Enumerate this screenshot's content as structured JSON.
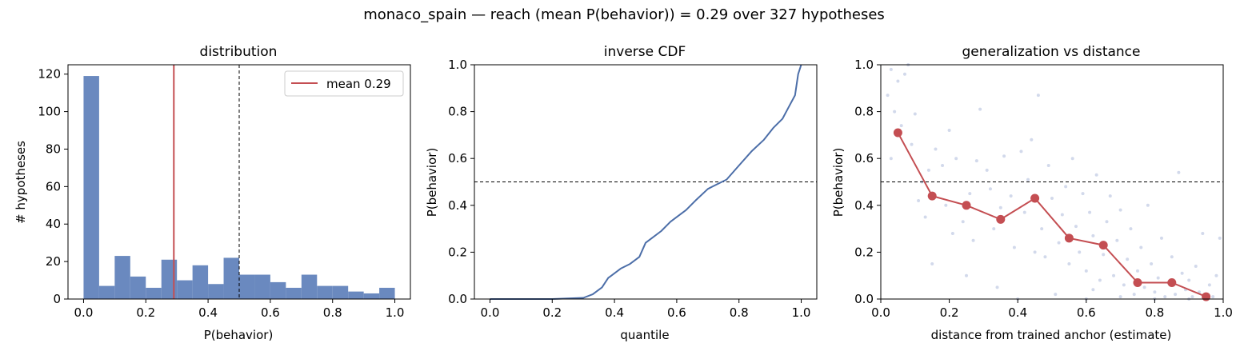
{
  "figure_title": "monaco_spain  —  reach (mean P(behavior)) = 0.29  over 327 hypotheses",
  "colors": {
    "blue": "#6a89bf",
    "line_blue": "#4c6ea8",
    "red": "#c44e52",
    "scatter": "#c7cfe6"
  },
  "chart_data": [
    {
      "type": "bar",
      "title": "distribution",
      "xlabel": "P(behavior)",
      "ylabel": "# hypotheses",
      "xlim": [
        -0.05,
        1.05
      ],
      "ylim": [
        0,
        125
      ],
      "xticks": [
        0.0,
        0.2,
        0.4,
        0.6,
        0.8,
        1.0
      ],
      "xtick_labels": [
        "0.0",
        "0.2",
        "0.4",
        "0.6",
        "0.8",
        "1.0"
      ],
      "yticks": [
        0,
        20,
        40,
        60,
        80,
        100,
        120
      ],
      "ytick_labels": [
        "0",
        "20",
        "40",
        "60",
        "80",
        "100",
        "120"
      ],
      "bin_edges": [
        0.0,
        0.05,
        0.1,
        0.15,
        0.2,
        0.25,
        0.3,
        0.35,
        0.4,
        0.45,
        0.5,
        0.55,
        0.6,
        0.65,
        0.7,
        0.75,
        0.8,
        0.85,
        0.9,
        0.95,
        1.0
      ],
      "counts": [
        119,
        7,
        23,
        12,
        6,
        21,
        10,
        18,
        8,
        22,
        13,
        13,
        9,
        6,
        13,
        7,
        7,
        4,
        3,
        6
      ],
      "mean_line": {
        "x": 0.29,
        "label": "mean 0.29"
      },
      "threshold_x": 0.5,
      "legend": "top-right"
    },
    {
      "type": "line",
      "title": "inverse CDF",
      "xlabel": "quantile",
      "ylabel": "P(behavior)",
      "xlim": [
        -0.05,
        1.05
      ],
      "ylim": [
        0,
        1.0
      ],
      "xticks": [
        0.0,
        0.2,
        0.4,
        0.6,
        0.8,
        1.0
      ],
      "xtick_labels": [
        "0.0",
        "0.2",
        "0.4",
        "0.6",
        "0.8",
        "1.0"
      ],
      "yticks": [
        0.0,
        0.2,
        0.4,
        0.6,
        0.8,
        1.0
      ],
      "ytick_labels": [
        "0.0",
        "0.2",
        "0.4",
        "0.6",
        "0.8",
        "1.0"
      ],
      "threshold_y": 0.5,
      "x": [
        0.0,
        0.2,
        0.3,
        0.33,
        0.36,
        0.38,
        0.4,
        0.42,
        0.45,
        0.48,
        0.5,
        0.52,
        0.55,
        0.58,
        0.6,
        0.63,
        0.66,
        0.7,
        0.73,
        0.76,
        0.8,
        0.84,
        0.88,
        0.91,
        0.94,
        0.96,
        0.98,
        0.99,
        1.0
      ],
      "y": [
        0.0,
        0.0,
        0.005,
        0.02,
        0.05,
        0.09,
        0.11,
        0.13,
        0.15,
        0.18,
        0.24,
        0.26,
        0.29,
        0.33,
        0.35,
        0.38,
        0.42,
        0.47,
        0.49,
        0.51,
        0.57,
        0.63,
        0.68,
        0.73,
        0.77,
        0.82,
        0.87,
        0.96,
        1.0
      ]
    },
    {
      "type": "scatter",
      "title": "generalization vs distance",
      "xlabel": "distance from trained anchor (estimate)",
      "ylabel": "P(behavior)",
      "xlim": [
        0.0,
        1.0
      ],
      "ylim": [
        0.0,
        1.0
      ],
      "xticks": [
        0.0,
        0.2,
        0.4,
        0.6,
        0.8,
        1.0
      ],
      "xtick_labels": [
        "0.0",
        "0.2",
        "0.4",
        "0.6",
        "0.8",
        "1.0"
      ],
      "yticks": [
        0.0,
        0.2,
        0.4,
        0.6,
        0.8,
        1.0
      ],
      "ytick_labels": [
        "0.0",
        "0.2",
        "0.4",
        "0.6",
        "0.8",
        "1.0"
      ],
      "threshold_y": 0.5,
      "binned_means": {
        "x": [
          0.05,
          0.15,
          0.25,
          0.35,
          0.45,
          0.55,
          0.65,
          0.75,
          0.85,
          0.95
        ],
        "y": [
          0.71,
          0.44,
          0.4,
          0.34,
          0.43,
          0.26,
          0.23,
          0.07,
          0.07,
          0.01
        ]
      },
      "points": [
        [
          0.02,
          0.87
        ],
        [
          0.03,
          0.98
        ],
        [
          0.05,
          0.93
        ],
        [
          0.07,
          0.96
        ],
        [
          0.08,
          1.0
        ],
        [
          0.04,
          0.8
        ],
        [
          0.06,
          0.74
        ],
        [
          0.09,
          0.66
        ],
        [
          0.1,
          0.79
        ],
        [
          0.03,
          0.6
        ],
        [
          0.12,
          0.5
        ],
        [
          0.11,
          0.42
        ],
        [
          0.14,
          0.55
        ],
        [
          0.16,
          0.64
        ],
        [
          0.13,
          0.35
        ],
        [
          0.18,
          0.57
        ],
        [
          0.19,
          0.4
        ],
        [
          0.2,
          0.72
        ],
        [
          0.22,
          0.6
        ],
        [
          0.21,
          0.28
        ],
        [
          0.24,
          0.33
        ],
        [
          0.26,
          0.45
        ],
        [
          0.27,
          0.25
        ],
        [
          0.28,
          0.59
        ],
        [
          0.29,
          0.81
        ],
        [
          0.31,
          0.55
        ],
        [
          0.32,
          0.47
        ],
        [
          0.33,
          0.3
        ],
        [
          0.35,
          0.39
        ],
        [
          0.36,
          0.61
        ],
        [
          0.38,
          0.44
        ],
        [
          0.39,
          0.22
        ],
        [
          0.41,
          0.63
        ],
        [
          0.42,
          0.37
        ],
        [
          0.43,
          0.51
        ],
        [
          0.44,
          0.68
        ],
        [
          0.46,
          0.87
        ],
        [
          0.47,
          0.3
        ],
        [
          0.48,
          0.18
        ],
        [
          0.49,
          0.57
        ],
        [
          0.5,
          0.43
        ],
        [
          0.52,
          0.24
        ],
        [
          0.53,
          0.36
        ],
        [
          0.54,
          0.48
        ],
        [
          0.55,
          0.15
        ],
        [
          0.56,
          0.6
        ],
        [
          0.57,
          0.31
        ],
        [
          0.58,
          0.2
        ],
        [
          0.59,
          0.45
        ],
        [
          0.6,
          0.12
        ],
        [
          0.61,
          0.37
        ],
        [
          0.62,
          0.27
        ],
        [
          0.63,
          0.53
        ],
        [
          0.64,
          0.08
        ],
        [
          0.65,
          0.19
        ],
        [
          0.66,
          0.33
        ],
        [
          0.67,
          0.44
        ],
        [
          0.68,
          0.1
        ],
        [
          0.69,
          0.25
        ],
        [
          0.7,
          0.38
        ],
        [
          0.71,
          0.06
        ],
        [
          0.72,
          0.17
        ],
        [
          0.73,
          0.3
        ],
        [
          0.74,
          0.02
        ],
        [
          0.75,
          0.12
        ],
        [
          0.76,
          0.22
        ],
        [
          0.77,
          0.05
        ],
        [
          0.78,
          0.4
        ],
        [
          0.79,
          0.15
        ],
        [
          0.8,
          0.03
        ],
        [
          0.81,
          0.09
        ],
        [
          0.82,
          0.26
        ],
        [
          0.83,
          0.01
        ],
        [
          0.84,
          0.07
        ],
        [
          0.85,
          0.18
        ],
        [
          0.86,
          0.02
        ],
        [
          0.87,
          0.54
        ],
        [
          0.88,
          0.11
        ],
        [
          0.89,
          0.04
        ],
        [
          0.9,
          0.08
        ],
        [
          0.91,
          0.01
        ],
        [
          0.92,
          0.14
        ],
        [
          0.93,
          0.03
        ],
        [
          0.94,
          0.28
        ],
        [
          0.95,
          0.02
        ],
        [
          0.96,
          0.06
        ],
        [
          0.97,
          0.01
        ],
        [
          0.98,
          0.1
        ],
        [
          0.99,
          0.26
        ],
        [
          0.15,
          0.15
        ],
        [
          0.25,
          0.1
        ],
        [
          0.34,
          0.05
        ],
        [
          0.45,
          0.2
        ],
        [
          0.51,
          0.02
        ],
        [
          0.62,
          0.04
        ],
        [
          0.7,
          0.01
        ],
        [
          0.8,
          0.0
        ],
        [
          0.9,
          0.0
        ],
        [
          0.6,
          0.0
        ],
        [
          0.4,
          0.0
        ]
      ]
    }
  ]
}
